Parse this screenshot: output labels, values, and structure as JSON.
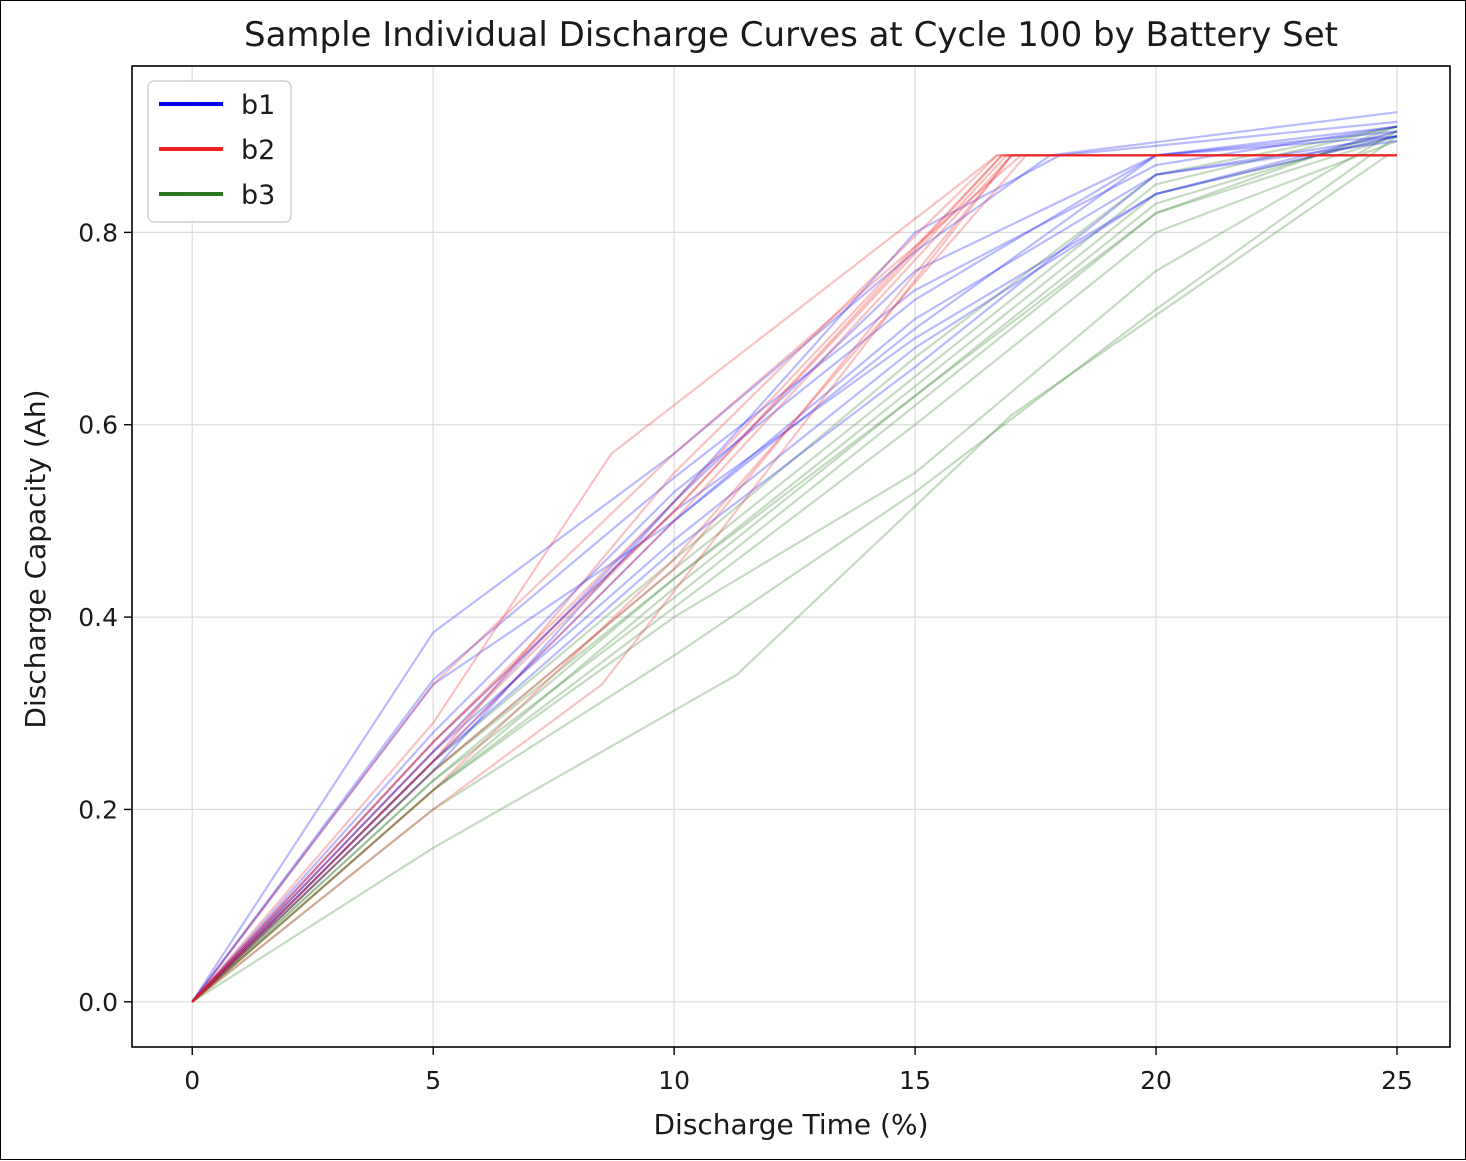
{
  "chart_data": {
    "type": "line",
    "title": "Sample Individual Discharge Curves at Cycle 100 by Battery Set",
    "xlabel": "Discharge Time (%)",
    "ylabel": "Discharge Capacity (Ah)",
    "xlim": [
      -1.25,
      26.1
    ],
    "ylim": [
      -0.047,
      0.973
    ],
    "xticks": [
      0,
      5,
      10,
      15,
      20,
      25
    ],
    "yticks": [
      0.0,
      0.2,
      0.4,
      0.6,
      0.8
    ],
    "xtick_labels": [
      "0",
      "5",
      "10",
      "15",
      "20",
      "25"
    ],
    "ytick_labels": [
      "0.0",
      "0.2",
      "0.4",
      "0.6",
      "0.8"
    ],
    "grid": true,
    "legend_position": "top-left",
    "legend": [
      {
        "label": "b1",
        "color": "#0000ff"
      },
      {
        "label": "b2",
        "color": "#ee2222"
      },
      {
        "label": "b3",
        "color": "#2a7a1e"
      }
    ],
    "series": [
      {
        "group": "b1",
        "x": [
          0,
          5,
          10,
          15,
          17.8,
          25
        ],
        "y": [
          0,
          0.384,
          0.57,
          0.78,
          0.88,
          0.925
        ]
      },
      {
        "group": "b1",
        "x": [
          0,
          5,
          10,
          15,
          20,
          25
        ],
        "y": [
          0,
          0.335,
          0.545,
          0.74,
          0.87,
          0.91
        ]
      },
      {
        "group": "b1",
        "x": [
          0,
          5,
          10,
          15,
          20,
          25
        ],
        "y": [
          0,
          0.33,
          0.5,
          0.7,
          0.88,
          0.905
        ]
      },
      {
        "group": "b1",
        "x": [
          0,
          5,
          10,
          15,
          20,
          25
        ],
        "y": [
          0,
          0.28,
          0.53,
          0.73,
          0.88,
          0.91
        ]
      },
      {
        "group": "b1",
        "x": [
          0,
          5,
          10,
          15,
          18.0,
          25
        ],
        "y": [
          0,
          0.26,
          0.52,
          0.8,
          0.88,
          0.915
        ]
      },
      {
        "group": "b1",
        "x": [
          0,
          5,
          10,
          15,
          20,
          25
        ],
        "y": [
          0,
          0.25,
          0.5,
          0.71,
          0.86,
          0.9
        ]
      },
      {
        "group": "b1",
        "x": [
          0,
          5,
          10,
          15,
          20,
          25
        ],
        "y": [
          0,
          0.27,
          0.51,
          0.69,
          0.84,
          0.9
        ]
      },
      {
        "group": "b1",
        "x": [
          0,
          5,
          10,
          15,
          20,
          25
        ],
        "y": [
          0,
          0.26,
          0.48,
          0.68,
          0.84,
          0.905
        ]
      },
      {
        "group": "b1",
        "x": [
          0,
          5,
          10,
          15,
          20,
          25
        ],
        "y": [
          0,
          0.24,
          0.52,
          0.76,
          0.88,
          0.9
        ]
      },
      {
        "group": "b1",
        "x": [
          0,
          5,
          10,
          15,
          20,
          25
        ],
        "y": [
          0,
          0.25,
          0.47,
          0.66,
          0.86,
          0.895
        ]
      },
      {
        "group": "b2",
        "x": [
          0,
          5,
          8.7,
          16.7,
          25
        ],
        "y": [
          0,
          0.29,
          0.57,
          0.88,
          0.88
        ]
      },
      {
        "group": "b2",
        "x": [
          0,
          5,
          10,
          16.7,
          25
        ],
        "y": [
          0,
          0.25,
          0.55,
          0.88,
          0.88
        ]
      },
      {
        "group": "b2",
        "x": [
          0,
          5,
          10,
          16.8,
          25
        ],
        "y": [
          0,
          0.27,
          0.52,
          0.88,
          0.88
        ]
      },
      {
        "group": "b2",
        "x": [
          0,
          5,
          10,
          16.8,
          25
        ],
        "y": [
          0,
          0.26,
          0.51,
          0.88,
          0.88
        ]
      },
      {
        "group": "b2",
        "x": [
          0,
          5,
          10,
          16.9,
          25
        ],
        "y": [
          0,
          0.27,
          0.51,
          0.88,
          0.88
        ]
      },
      {
        "group": "b2",
        "x": [
          0,
          5,
          10,
          17.0,
          25
        ],
        "y": [
          0,
          0.25,
          0.5,
          0.88,
          0.88
        ]
      },
      {
        "group": "b2",
        "x": [
          0,
          5,
          8.5,
          17.0,
          25
        ],
        "y": [
          0,
          0.2,
          0.33,
          0.88,
          0.88
        ]
      },
      {
        "group": "b2",
        "x": [
          0,
          5,
          10,
          17.2,
          25
        ],
        "y": [
          0,
          0.33,
          0.57,
          0.88,
          0.88
        ]
      },
      {
        "group": "b2",
        "x": [
          0,
          5,
          10,
          17.0,
          25
        ],
        "y": [
          0,
          0.24,
          0.45,
          0.88,
          0.88
        ]
      },
      {
        "group": "b2",
        "x": [
          0,
          5,
          10,
          17.3,
          25
        ],
        "y": [
          0,
          0.22,
          0.46,
          0.88,
          0.88
        ]
      },
      {
        "group": "b3",
        "x": [
          0,
          5,
          11.3,
          17,
          24.8
        ],
        "y": [
          0,
          0.16,
          0.34,
          0.61,
          0.88
        ]
      },
      {
        "group": "b3",
        "x": [
          0,
          5,
          10,
          15,
          20,
          25
        ],
        "y": [
          0,
          0.2,
          0.36,
          0.53,
          0.72,
          0.9
        ]
      },
      {
        "group": "b3",
        "x": [
          0,
          5,
          10,
          15,
          20,
          25
        ],
        "y": [
          0,
          0.22,
          0.4,
          0.55,
          0.76,
          0.905
        ]
      },
      {
        "group": "b3",
        "x": [
          0,
          5,
          10,
          15,
          20,
          25
        ],
        "y": [
          0,
          0.23,
          0.42,
          0.62,
          0.82,
          0.91
        ]
      },
      {
        "group": "b3",
        "x": [
          0,
          5,
          10,
          15,
          20,
          25
        ],
        "y": [
          0,
          0.22,
          0.43,
          0.63,
          0.83,
          0.905
        ]
      },
      {
        "group": "b3",
        "x": [
          0,
          5,
          10,
          15,
          20,
          25
        ],
        "y": [
          0,
          0.24,
          0.45,
          0.65,
          0.85,
          0.91
        ]
      },
      {
        "group": "b3",
        "x": [
          0,
          5,
          10,
          15,
          20,
          25
        ],
        "y": [
          0,
          0.23,
          0.44,
          0.64,
          0.84,
          0.9
        ]
      },
      {
        "group": "b3",
        "x": [
          0,
          5,
          10,
          15,
          20,
          25
        ],
        "y": [
          0,
          0.25,
          0.46,
          0.67,
          0.86,
          0.91
        ]
      },
      {
        "group": "b3",
        "x": [
          0,
          5,
          10,
          15,
          20,
          25
        ],
        "y": [
          0,
          0.22,
          0.41,
          0.6,
          0.8,
          0.895
        ]
      },
      {
        "group": "b3",
        "x": [
          0,
          5,
          10,
          15,
          20,
          25
        ],
        "y": [
          0,
          0.24,
          0.44,
          0.63,
          0.82,
          0.9
        ]
      }
    ]
  }
}
